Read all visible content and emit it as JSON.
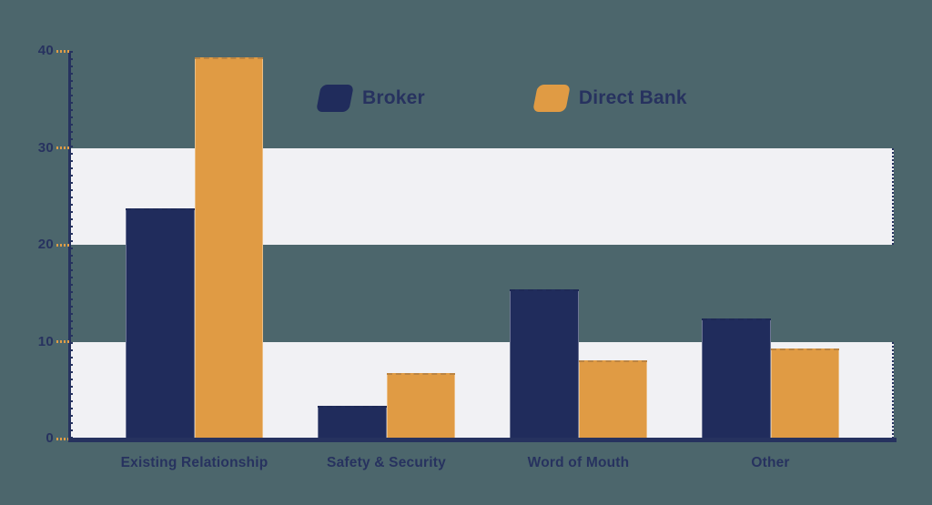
{
  "colors": {
    "background": "#4c666c",
    "band": "#f1f1f4",
    "axis": "#26325f",
    "text": "#27325f",
    "tick_dash": "#e29d46",
    "broker": "#202c5c",
    "direct_bank": "#e09b44"
  },
  "legend": {
    "items": [
      {
        "label": "Broker",
        "swatch": "broker-swatch"
      },
      {
        "label": "Direct Bank",
        "swatch": "direct-bank-swatch"
      }
    ]
  },
  "chart_data": {
    "type": "bar",
    "title": "",
    "categories": [
      "Existing Relationship",
      "Safety & Security",
      "Word of Mouth",
      "Other"
    ],
    "series": [
      {
        "name": "Broker",
        "color": "#202c5c",
        "values": [
          23.8,
          3.4,
          15.4,
          12.4
        ]
      },
      {
        "name": "Direct Bank",
        "color": "#e09b44",
        "values": [
          39.3,
          6.8,
          8.1,
          9.3
        ]
      }
    ],
    "y_axis": {
      "min": 0,
      "max": 40,
      "ticks": [
        0,
        10,
        20,
        30,
        40
      ]
    },
    "x_axis": {
      "labels": [
        "Existing Relationship",
        "Safety & Security",
        "Word of Mouth",
        "Other"
      ]
    },
    "background_bands": [
      [
        0,
        10
      ],
      [
        20,
        30
      ]
    ],
    "grid": false,
    "legend_position": "top-center",
    "ylim": [
      0,
      40
    ]
  }
}
